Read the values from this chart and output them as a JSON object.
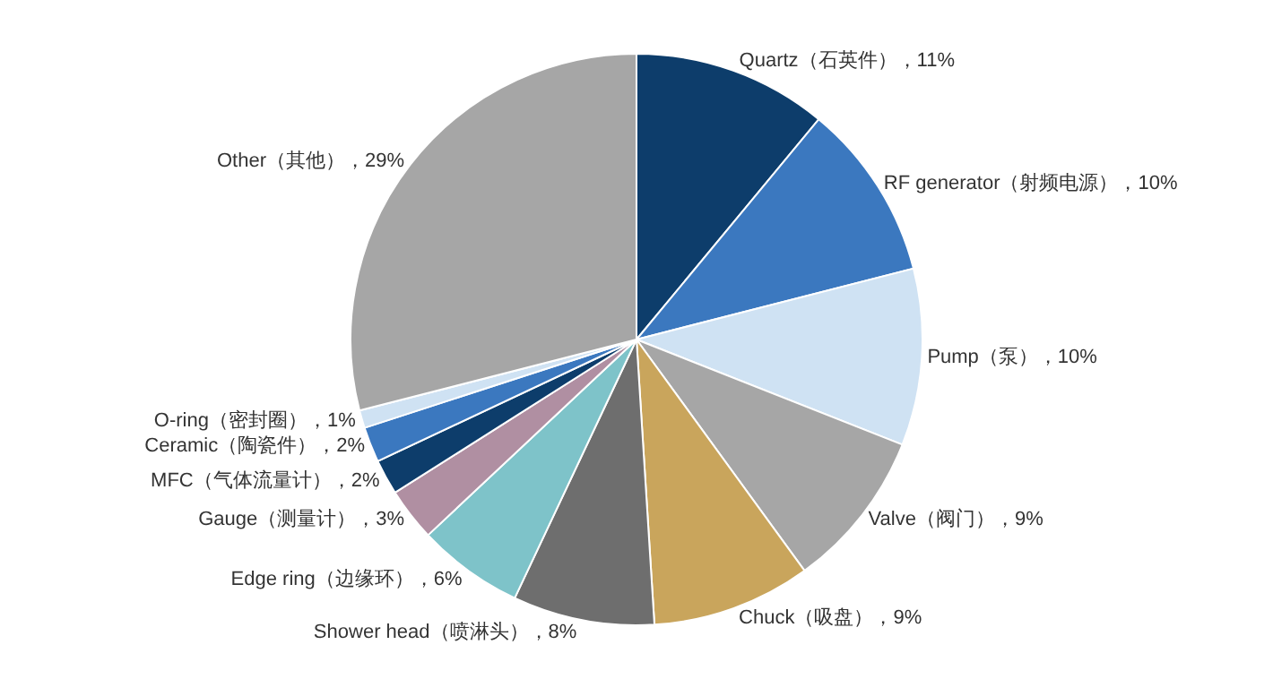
{
  "chart_data": {
    "type": "pie",
    "categories": [
      "Quartz（石英件）",
      "RF generator（射频电源）",
      "Pump（泵）",
      "Valve（阀门）",
      "Chuck（吸盘）",
      "Shower head（喷淋头）",
      "Edge ring（边缘环）",
      "Gauge（测量计）",
      "MFC（气体流量计）",
      "Ceramic（陶瓷件）",
      "O-ring（密封圈）",
      "Other（其他）"
    ],
    "values": [
      11,
      10,
      10,
      9,
      9,
      8,
      6,
      3,
      2,
      2,
      1,
      29
    ],
    "value_labels": [
      "11%",
      "10%",
      "10%",
      "9%",
      "9%",
      "8%",
      "6%",
      "3%",
      "2%",
      "2%",
      "1%",
      "29%"
    ],
    "colors": [
      "#0d3d6b",
      "#3b78bf",
      "#cfe2f3",
      "#a6a6a6",
      "#c9a55c",
      "#6e6e6e",
      "#7ec3c9",
      "#b08fa2",
      "#0d3d6b",
      "#3b78bf",
      "#cfe2f3",
      "#a6a6a6"
    ],
    "legend": false
  }
}
